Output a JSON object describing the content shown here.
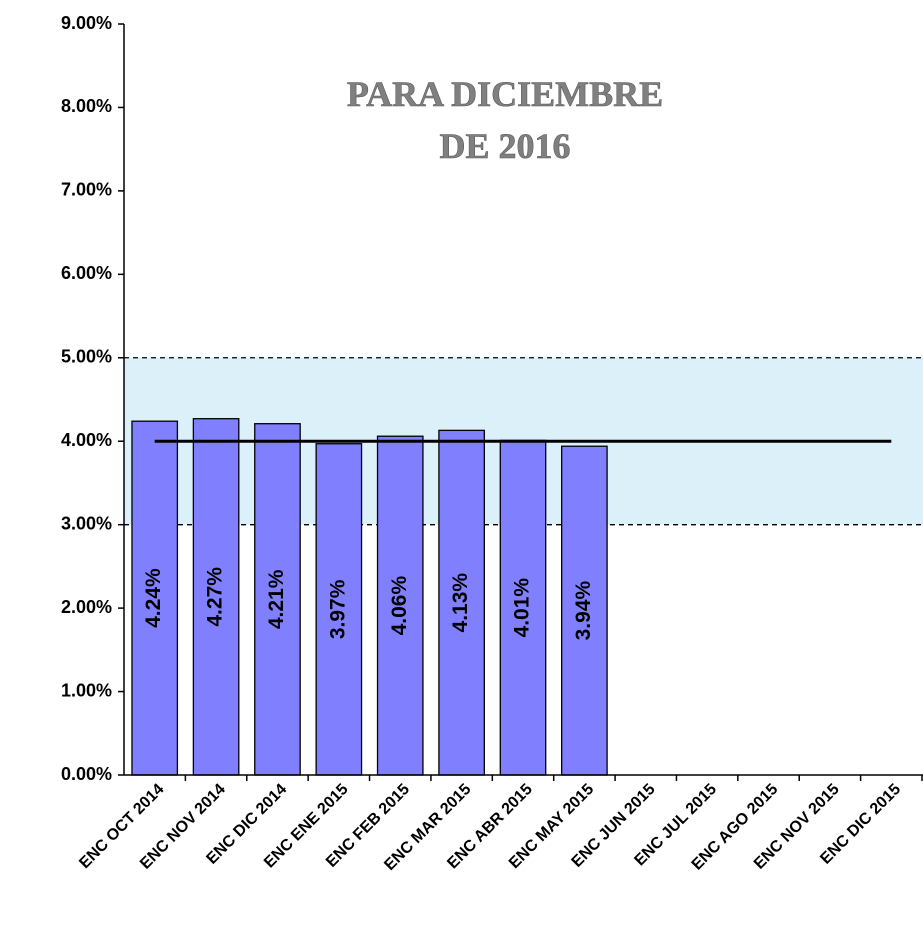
{
  "chart_data": {
    "type": "bar",
    "annotation": [
      "PARA DICIEMBRE",
      "DE 2016"
    ],
    "categories": [
      "ENC OCT 2014",
      "ENC NOV 2014",
      "ENC DIC 2014",
      "ENC ENE 2015",
      "ENC FEB 2015",
      "ENC MAR 2015",
      "ENC ABR 2015",
      "ENC MAY 2015",
      "ENC JUN 2015",
      "ENC JUL 2015",
      "ENC AGO 2015",
      "ENC NOV 2015",
      "ENC DIC 2015"
    ],
    "values": [
      4.24,
      4.27,
      4.21,
      3.97,
      4.06,
      4.13,
      4.01,
      3.94,
      null,
      null,
      null,
      null,
      null
    ],
    "value_labels": [
      "4.24%",
      "4.27%",
      "4.21%",
      "3.97%",
      "4.06%",
      "4.13%",
      "4.01%",
      "3.94%",
      null,
      null,
      null,
      null,
      null
    ],
    "color": "#8080ff",
    "target": 4,
    "target_color": "#000000",
    "band": [
      3,
      5
    ],
    "band_color": "#dcf0fa",
    "ylim": [
      0,
      9
    ],
    "yticks": [
      {
        "value": 0,
        "label": "0.00%"
      },
      {
        "value": 1,
        "label": "1.00%"
      },
      {
        "value": 2,
        "label": "2.00%"
      },
      {
        "value": 3,
        "label": "3.00%"
      },
      {
        "value": 4,
        "label": "4.00%"
      },
      {
        "value": 5,
        "label": "5.00%"
      },
      {
        "value": 6,
        "label": "6.00%"
      },
      {
        "value": 7,
        "label": "7.00%"
      },
      {
        "value": 8,
        "label": "8.00%"
      },
      {
        "value": 9,
        "label": "9.00%"
      }
    ],
    "grid": false
  }
}
